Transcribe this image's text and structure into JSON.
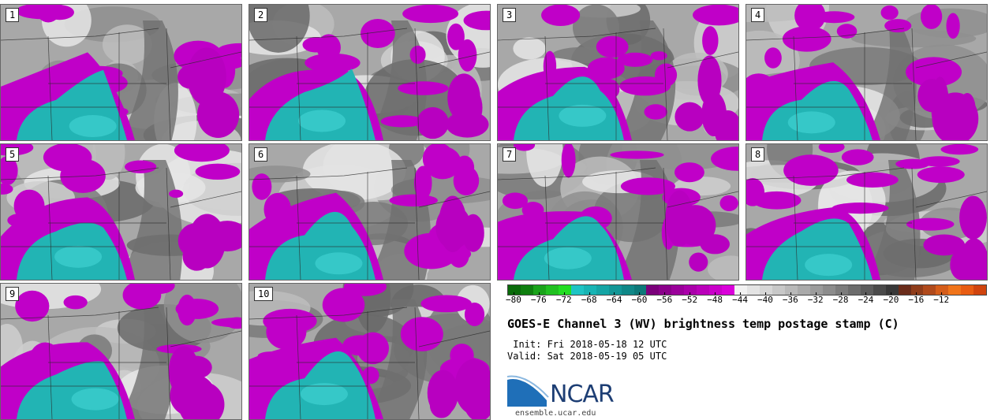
{
  "panels": [
    {
      "label": "1"
    },
    {
      "label": "2"
    },
    {
      "label": "3"
    },
    {
      "label": "4"
    },
    {
      "label": "5"
    },
    {
      "label": "6"
    },
    {
      "label": "7"
    },
    {
      "label": "8"
    },
    {
      "label": "9"
    },
    {
      "label": "10"
    }
  ],
  "colorbar": {
    "ticks": [
      "−80",
      "−76",
      "−72",
      "−68",
      "−64",
      "−60",
      "−56",
      "−52",
      "−48",
      "−44",
      "−40",
      "−36",
      "−32",
      "−28",
      "−24",
      "−20",
      "−16",
      "−12"
    ],
    "colors": [
      "#0a6b0a",
      "#0f7f0f",
      "#1aa31a",
      "#20c020",
      "#22dd22",
      "#1ec4c4",
      "#18b4b4",
      "#15a5a5",
      "#129696",
      "#0f8787",
      "#0c7878",
      "#7a007a",
      "#8a008a",
      "#9a009a",
      "#aa00aa",
      "#ba00ba",
      "#ca00ca",
      "#da00da",
      "#f2f2f2",
      "#e4e4e4",
      "#d6d6d6",
      "#c8c8c8",
      "#b9b9b9",
      "#aaaaaa",
      "#9b9b9b",
      "#8c8c8c",
      "#7c7c7c",
      "#6c6c6c",
      "#5c5c5c",
      "#4a4a4a",
      "#383838",
      "#6a2c1a",
      "#8f3c1a",
      "#b04a1c",
      "#d55d1a",
      "#f0741a",
      "#e85c12",
      "#d0440e"
    ]
  },
  "title": "GOES-E Channel 3 (WV) brightness temp postage stamp (C)",
  "init": " Init: Fri 2018-05-18 12 UTC",
  "valid": "Valid: Sat 2018-05-19 05 UTC",
  "logo": {
    "text": "NCAR",
    "site": "ensemble.ucar.edu"
  }
}
